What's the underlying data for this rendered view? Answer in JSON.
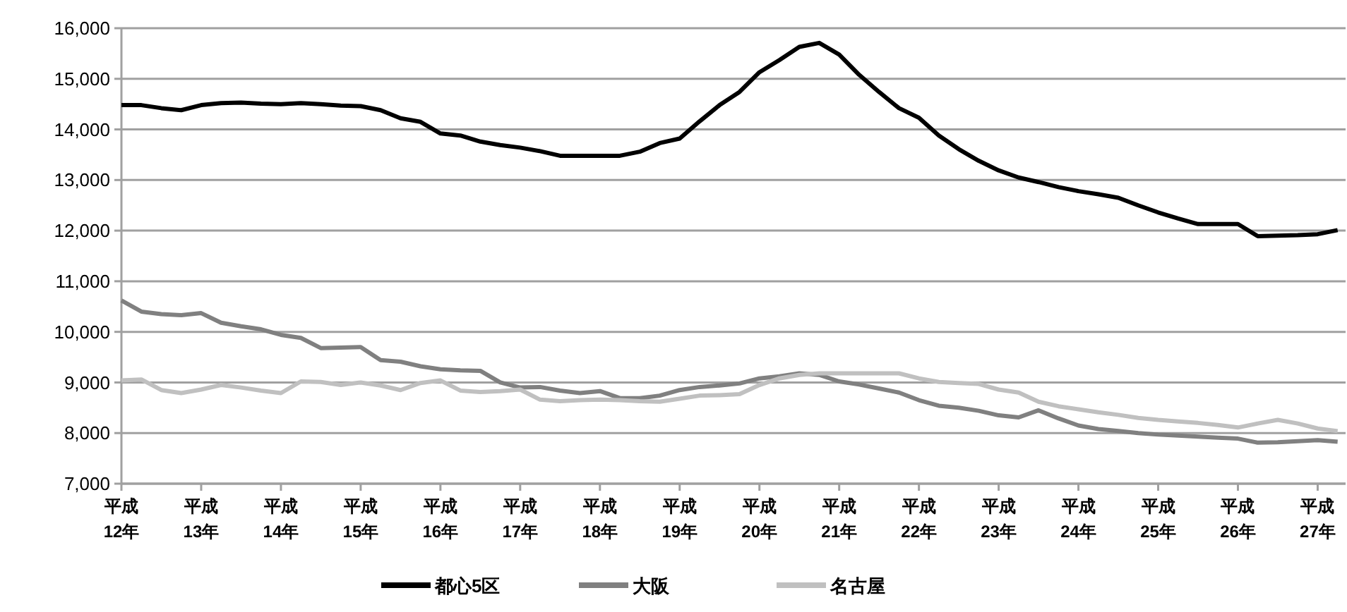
{
  "chart_data": {
    "type": "line",
    "legend": "bottom",
    "grid": "y",
    "line_style": "solid",
    "categories": [
      "平成\n12年",
      null,
      null,
      null,
      "平成\n13年",
      null,
      null,
      null,
      "平成\n14年",
      null,
      null,
      null,
      "平成\n15年",
      null,
      null,
      null,
      "平成\n16年",
      null,
      null,
      null,
      "平成\n17年",
      null,
      null,
      null,
      "平成\n18年",
      null,
      null,
      null,
      "平成\n19年",
      null,
      null,
      null,
      "平成\n20年",
      null,
      null,
      null,
      "平成\n21年",
      null,
      null,
      null,
      "平成\n22年",
      null,
      null,
      null,
      "平成\n23年",
      null,
      null,
      null,
      "平成\n24年",
      null,
      null,
      null,
      "平成\n25年",
      null,
      null,
      null,
      "平成\n26年",
      null,
      null,
      null,
      "平成\n27年",
      null
    ],
    "ylim": [
      7000,
      16000
    ],
    "yticks": [
      {
        "value": 7000,
        "label": "7,000"
      },
      {
        "value": 8000,
        "label": "8,000"
      },
      {
        "value": 9000,
        "label": "9,000"
      },
      {
        "value": 10000,
        "label": "10,000"
      },
      {
        "value": 11000,
        "label": "11,000"
      },
      {
        "value": 12000,
        "label": "12,000"
      },
      {
        "value": 13000,
        "label": "13,000"
      },
      {
        "value": 14000,
        "label": "14,000"
      },
      {
        "value": 15000,
        "label": "15,000"
      },
      {
        "value": 16000,
        "label": "16,000"
      }
    ],
    "series": [
      {
        "name": "都心5区",
        "color": "#000000",
        "values": [
          14480,
          14480,
          14420,
          14380,
          14480,
          14520,
          14530,
          14510,
          14500,
          14520,
          14500,
          14470,
          14460,
          14380,
          14220,
          14150,
          13920,
          13880,
          13760,
          13690,
          13640,
          13570,
          13480,
          13480,
          13480,
          13480,
          13560,
          13730,
          13820,
          14160,
          14480,
          14740,
          15130,
          15370,
          15630,
          15710,
          15480,
          15080,
          14740,
          14420,
          14230,
          13880,
          13610,
          13380,
          13190,
          13050,
          12960,
          12860,
          12780,
          12720,
          12650,
          12500,
          12360,
          12240,
          12130,
          12130,
          12130,
          11890,
          11900,
          11910,
          11930,
          12010
        ]
      },
      {
        "name": "大阪",
        "color": "#808080",
        "values": [
          10620,
          10400,
          10350,
          10330,
          10370,
          10180,
          10110,
          10050,
          9940,
          9880,
          9680,
          9690,
          9700,
          9440,
          9410,
          9320,
          9260,
          9240,
          9230,
          9000,
          8900,
          8910,
          8840,
          8790,
          8830,
          8690,
          8690,
          8740,
          8850,
          8910,
          8940,
          8980,
          9080,
          9120,
          9180,
          9150,
          9020,
          8960,
          8880,
          8800,
          8650,
          8540,
          8500,
          8440,
          8350,
          8310,
          8450,
          8290,
          8150,
          8080,
          8040,
          8000,
          7970,
          7950,
          7930,
          7910,
          7890,
          7810,
          7820,
          7840,
          7860,
          7830
        ]
      },
      {
        "name": "名古屋",
        "color": "#c0c0c0",
        "values": [
          9040,
          9060,
          8850,
          8790,
          8860,
          8950,
          8900,
          8840,
          8790,
          9020,
          9010,
          8950,
          9000,
          8940,
          8850,
          8990,
          9040,
          8840,
          8810,
          8830,
          8860,
          8660,
          8630,
          8650,
          8660,
          8650,
          8630,
          8620,
          8680,
          8740,
          8750,
          8770,
          8950,
          9080,
          9150,
          9180,
          9180,
          9180,
          9180,
          9180,
          9080,
          9010,
          8990,
          8970,
          8860,
          8800,
          8620,
          8530,
          8470,
          8410,
          8360,
          8300,
          8260,
          8230,
          8200,
          8160,
          8110,
          8190,
          8260,
          8190,
          8090,
          8040
        ]
      }
    ]
  }
}
